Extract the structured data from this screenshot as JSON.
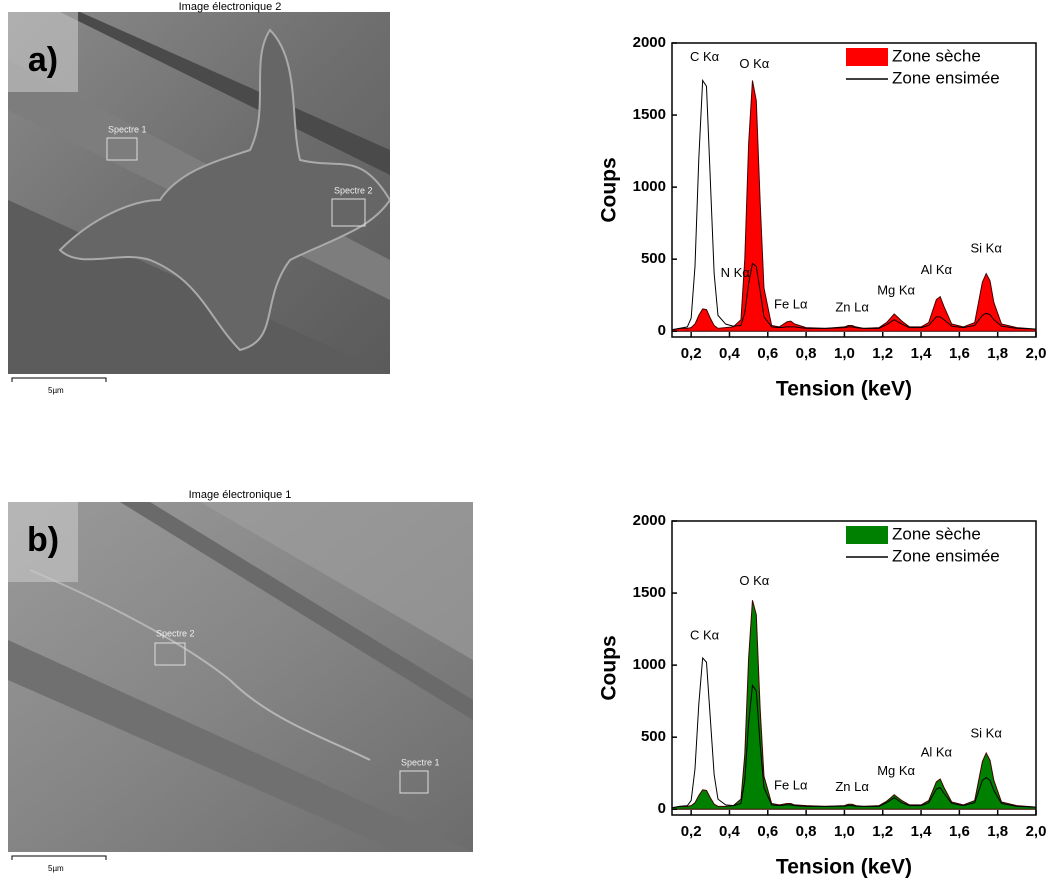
{
  "images": [
    {
      "title": "Image électronique 2",
      "panel": "a)",
      "spectra": [
        "Spectre 1",
        "Spectre 2"
      ],
      "scale": "5µm"
    },
    {
      "title": "Image électronique 1",
      "panel": "b)",
      "spectra": [
        "Spectre 2",
        "Spectre 1"
      ],
      "scale": "5µm"
    }
  ],
  "chart_data": [
    {
      "type": "area",
      "xlabel": "Tension (keV)",
      "ylabel": "Coups",
      "legend": "upper right",
      "annotations": [
        "C Kα",
        "O Kα",
        "N Kα",
        "Fe Lα",
        "Zn Lα",
        "Mg Kα",
        "Al Kα",
        "Si Kα"
      ],
      "x": [
        0.1,
        0.14,
        0.18,
        0.2,
        0.22,
        0.24,
        0.26,
        0.28,
        0.3,
        0.32,
        0.34,
        0.38,
        0.42,
        0.46,
        0.48,
        0.5,
        0.52,
        0.54,
        0.56,
        0.58,
        0.62,
        0.66,
        0.7,
        0.72,
        0.74,
        0.8,
        0.9,
        1.0,
        1.02,
        1.04,
        1.06,
        1.1,
        1.18,
        1.22,
        1.26,
        1.3,
        1.34,
        1.4,
        1.44,
        1.48,
        1.5,
        1.52,
        1.56,
        1.62,
        1.68,
        1.72,
        1.74,
        1.76,
        1.78,
        1.82,
        1.9,
        2.0
      ],
      "series": [
        {
          "name": "Zone sèche",
          "color": "#ff0000",
          "fill": true,
          "values": [
            10,
            20,
            20,
            25,
            50,
            110,
            155,
            150,
            90,
            40,
            20,
            25,
            30,
            80,
            500,
            1300,
            1740,
            1600,
            900,
            300,
            40,
            30,
            65,
            70,
            50,
            25,
            20,
            30,
            40,
            40,
            30,
            20,
            25,
            60,
            120,
            70,
            30,
            30,
            60,
            220,
            240,
            170,
            50,
            30,
            60,
            340,
            400,
            350,
            200,
            50,
            25,
            15
          ]
        },
        {
          "name": "Zone ensimée",
          "color": "#000000",
          "fill": false,
          "values": [
            10,
            20,
            30,
            90,
            450,
            1200,
            1740,
            1700,
            1050,
            400,
            110,
            50,
            35,
            40,
            130,
            330,
            470,
            450,
            280,
            100,
            30,
            25,
            30,
            30,
            30,
            20,
            20,
            25,
            30,
            30,
            25,
            20,
            20,
            45,
            80,
            50,
            25,
            25,
            40,
            100,
            100,
            80,
            35,
            25,
            40,
            110,
            125,
            115,
            80,
            35,
            20,
            15
          ]
        }
      ],
      "xlim": [
        0.1,
        2.0
      ],
      "xticks": [
        {
          "value": 0.2,
          "label": "0,2"
        },
        {
          "value": 0.4,
          "label": "0,4"
        },
        {
          "value": 0.6,
          "label": "0,6"
        },
        {
          "value": 0.8,
          "label": "0,8"
        },
        {
          "value": 1.0,
          "label": "1,0"
        },
        {
          "value": 1.2,
          "label": "1,2"
        },
        {
          "value": 1.4,
          "label": "1,4"
        },
        {
          "value": 1.6,
          "label": "1,6"
        },
        {
          "value": 1.8,
          "label": "1,8"
        },
        {
          "value": 2.0,
          "label": "2,0"
        }
      ],
      "ylim": [
        -40,
        2000
      ],
      "yticks": [
        0,
        500,
        1000,
        1500,
        2000
      ]
    },
    {
      "type": "area",
      "xlabel": "Tension (keV)",
      "ylabel": "Coups",
      "legend": "upper right",
      "annotations": [
        "C Kα",
        "O Kα",
        "Fe Lα",
        "Zn Lα",
        "Mg Kα",
        "Al Kα",
        "Si Kα"
      ],
      "x": [
        0.1,
        0.14,
        0.18,
        0.2,
        0.22,
        0.24,
        0.26,
        0.28,
        0.3,
        0.32,
        0.34,
        0.38,
        0.42,
        0.46,
        0.48,
        0.5,
        0.52,
        0.54,
        0.56,
        0.58,
        0.62,
        0.66,
        0.7,
        0.72,
        0.74,
        0.8,
        0.9,
        1.0,
        1.02,
        1.04,
        1.06,
        1.1,
        1.18,
        1.22,
        1.26,
        1.3,
        1.34,
        1.4,
        1.44,
        1.48,
        1.5,
        1.52,
        1.56,
        1.62,
        1.68,
        1.72,
        1.74,
        1.76,
        1.78,
        1.82,
        1.9,
        2.0
      ],
      "series": [
        {
          "name": "Zone sèche",
          "color": "#008000",
          "fill": true,
          "values": [
            10,
            20,
            20,
            25,
            45,
            95,
            135,
            130,
            80,
            35,
            20,
            20,
            25,
            70,
            380,
            1050,
            1450,
            1350,
            700,
            230,
            40,
            30,
            40,
            40,
            30,
            25,
            20,
            25,
            35,
            35,
            25,
            20,
            25,
            55,
            100,
            60,
            30,
            30,
            60,
            190,
            210,
            150,
            50,
            30,
            60,
            330,
            390,
            340,
            200,
            50,
            25,
            15
          ]
        },
        {
          "name": "Zone ensimée",
          "color": "#000000",
          "fill": false,
          "values": [
            10,
            20,
            25,
            60,
            280,
            730,
            1050,
            1020,
            630,
            240,
            70,
            30,
            25,
            40,
            200,
            600,
            860,
            820,
            450,
            150,
            30,
            25,
            30,
            30,
            25,
            20,
            20,
            22,
            25,
            25,
            22,
            20,
            20,
            45,
            80,
            45,
            25,
            25,
            45,
            140,
            150,
            110,
            40,
            25,
            45,
            200,
            220,
            200,
            130,
            40,
            20,
            15
          ]
        }
      ],
      "xlim": [
        0.1,
        2.0
      ],
      "xticks": [
        {
          "value": 0.2,
          "label": "0,2"
        },
        {
          "value": 0.4,
          "label": "0,4"
        },
        {
          "value": 0.6,
          "label": "0,6"
        },
        {
          "value": 0.8,
          "label": "0,8"
        },
        {
          "value": 1.0,
          "label": "1,0"
        },
        {
          "value": 1.2,
          "label": "1,2"
        },
        {
          "value": 1.4,
          "label": "1,4"
        },
        {
          "value": 1.6,
          "label": "1,6"
        },
        {
          "value": 1.8,
          "label": "1,8"
        },
        {
          "value": 2.0,
          "label": "2,0"
        }
      ],
      "ylim": [
        -40,
        2000
      ],
      "yticks": [
        0,
        500,
        1000,
        1500,
        2000
      ]
    }
  ]
}
